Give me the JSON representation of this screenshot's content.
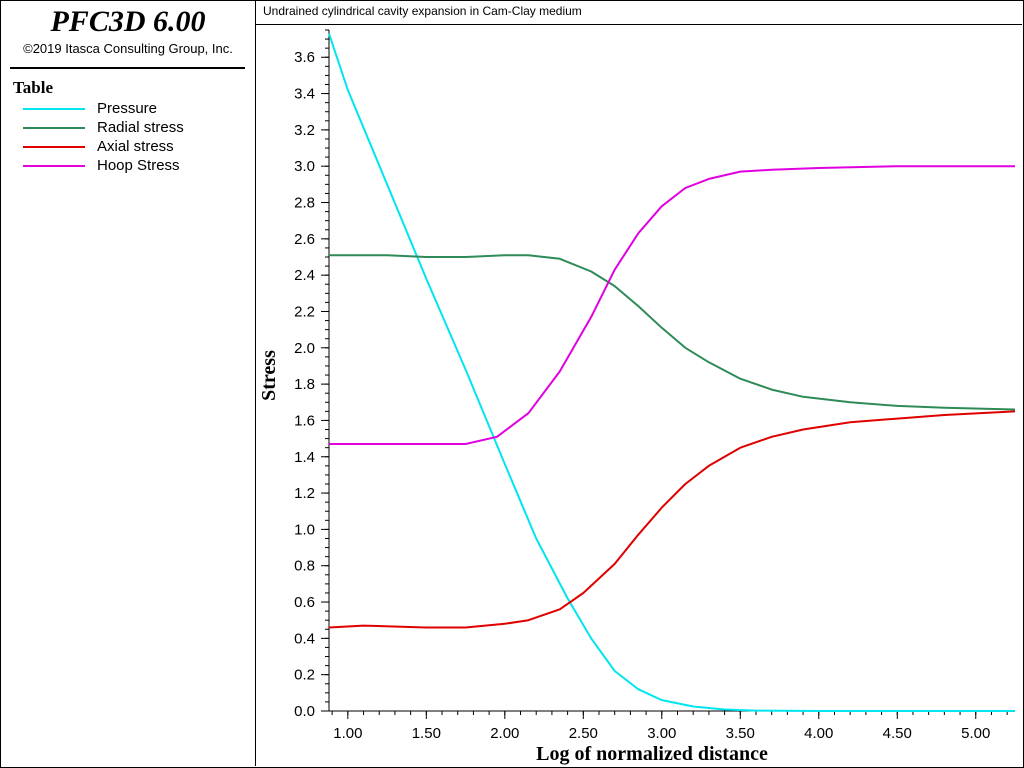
{
  "app": {
    "title": "PFC3D 6.00",
    "copyright": "©2019 Itasca Consulting Group, Inc."
  },
  "legend": {
    "title": "Table",
    "items": [
      {
        "label": "Pressure",
        "color": "#00e5ee"
      },
      {
        "label": "Radial stress",
        "color": "#2e8b57"
      },
      {
        "label": "Axial stress",
        "color": "#e00000"
      },
      {
        "label": "Hoop Stress",
        "color": "#e000e0"
      }
    ]
  },
  "chart_data": {
    "type": "line",
    "title": "Undrained cylindrical cavity expansion in Cam-Clay medium",
    "xlabel": "Log of normalized distance",
    "ylabel": "Stress",
    "xlim": [
      0.88,
      5.25
    ],
    "ylim": [
      0.0,
      3.75
    ],
    "x_ticks": [
      "1.00",
      "1.50",
      "2.00",
      "2.50",
      "3.00",
      "3.50",
      "4.00",
      "4.50",
      "5.00"
    ],
    "y_ticks": [
      "0.0",
      "0.2",
      "0.4",
      "0.6",
      "0.8",
      "1.0",
      "1.2",
      "1.4",
      "1.6",
      "1.8",
      "2.0",
      "2.2",
      "2.4",
      "2.6",
      "2.8",
      "3.0",
      "3.2",
      "3.4",
      "3.6"
    ],
    "grid": false,
    "series": [
      {
        "name": "Pressure",
        "color": "#00e5ee",
        "points": [
          [
            0.88,
            3.73
          ],
          [
            1.0,
            3.42
          ],
          [
            1.25,
            2.9
          ],
          [
            1.5,
            2.38
          ],
          [
            1.75,
            1.88
          ],
          [
            2.0,
            1.36
          ],
          [
            2.2,
            0.95
          ],
          [
            2.4,
            0.62
          ],
          [
            2.55,
            0.4
          ],
          [
            2.7,
            0.22
          ],
          [
            2.85,
            0.12
          ],
          [
            3.0,
            0.06
          ],
          [
            3.2,
            0.025
          ],
          [
            3.4,
            0.008
          ],
          [
            3.6,
            0.002
          ],
          [
            4.0,
            0.0
          ],
          [
            4.5,
            0.0
          ],
          [
            5.25,
            0.0
          ]
        ]
      },
      {
        "name": "Radial stress",
        "color": "#2e8b57",
        "points": [
          [
            0.88,
            2.51
          ],
          [
            1.25,
            2.51
          ],
          [
            1.5,
            2.5
          ],
          [
            1.75,
            2.5
          ],
          [
            2.0,
            2.51
          ],
          [
            2.15,
            2.51
          ],
          [
            2.35,
            2.49
          ],
          [
            2.55,
            2.42
          ],
          [
            2.7,
            2.34
          ],
          [
            2.85,
            2.23
          ],
          [
            3.0,
            2.11
          ],
          [
            3.15,
            2.0
          ],
          [
            3.3,
            1.92
          ],
          [
            3.5,
            1.83
          ],
          [
            3.7,
            1.77
          ],
          [
            3.9,
            1.73
          ],
          [
            4.2,
            1.7
          ],
          [
            4.5,
            1.68
          ],
          [
            4.8,
            1.67
          ],
          [
            5.25,
            1.66
          ]
        ]
      },
      {
        "name": "Axial stress",
        "color": "#e00000",
        "points": [
          [
            0.88,
            0.46
          ],
          [
            1.1,
            0.47
          ],
          [
            1.5,
            0.46
          ],
          [
            1.75,
            0.46
          ],
          [
            2.0,
            0.48
          ],
          [
            2.15,
            0.5
          ],
          [
            2.35,
            0.56
          ],
          [
            2.5,
            0.65
          ],
          [
            2.7,
            0.81
          ],
          [
            2.85,
            0.97
          ],
          [
            3.0,
            1.12
          ],
          [
            3.15,
            1.25
          ],
          [
            3.3,
            1.35
          ],
          [
            3.5,
            1.45
          ],
          [
            3.7,
            1.51
          ],
          [
            3.9,
            1.55
          ],
          [
            4.2,
            1.59
          ],
          [
            4.5,
            1.61
          ],
          [
            4.8,
            1.63
          ],
          [
            5.25,
            1.65
          ]
        ]
      },
      {
        "name": "Hoop Stress",
        "color": "#e000e0",
        "points": [
          [
            0.88,
            1.47
          ],
          [
            1.25,
            1.47
          ],
          [
            1.5,
            1.47
          ],
          [
            1.75,
            1.47
          ],
          [
            1.95,
            1.51
          ],
          [
            2.15,
            1.64
          ],
          [
            2.35,
            1.87
          ],
          [
            2.55,
            2.17
          ],
          [
            2.7,
            2.43
          ],
          [
            2.85,
            2.63
          ],
          [
            3.0,
            2.78
          ],
          [
            3.15,
            2.88
          ],
          [
            3.3,
            2.93
          ],
          [
            3.5,
            2.97
          ],
          [
            3.7,
            2.98
          ],
          [
            4.0,
            2.99
          ],
          [
            4.5,
            3.0
          ],
          [
            5.25,
            3.0
          ]
        ]
      }
    ]
  }
}
